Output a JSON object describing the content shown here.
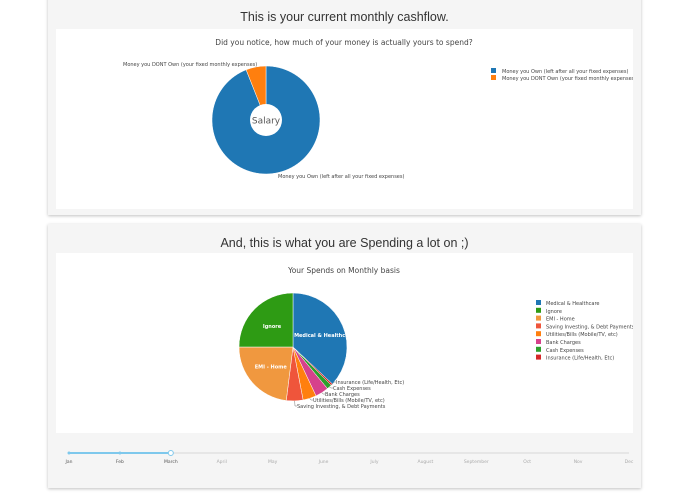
{
  "cashflow": {
    "heading": "This is your current monthly cashflow.",
    "chart_data": {
      "type": "pie",
      "hole": true,
      "title": "Did you notice, how much of your money is actually yours to spend?",
      "center_label": "Salary",
      "labels": [
        "Money you Own (left after all your fixed expenses)",
        "Money you DONT Own (your fixed monthly expenses)"
      ],
      "values": [
        94,
        6
      ],
      "colors": [
        "#1f77b4",
        "#ff7f0e"
      ],
      "legend": "right"
    }
  },
  "spending": {
    "heading": "And, this is what you are Spending a lot on ;)",
    "chart_data": {
      "type": "pie",
      "title": "Your Spends on Monthly basis",
      "labels": [
        "Medical & Healthcare",
        "Insurance (Life/Health, Etc)",
        "Cash Expenses",
        "Bank Charges",
        "Utilities/Bills (Mobile/TV, etc)",
        "Saving Investing, & Debt Payments",
        "EMI - Home",
        "Ignore"
      ],
      "values": [
        37,
        0.5,
        1.5,
        4,
        4,
        5,
        23,
        25
      ],
      "colors": [
        "#1f77b4",
        "#d62728",
        "#2ca02c",
        "#d6418c",
        "#ff7f0e",
        "#ef553b",
        "#f0983f",
        "#2e9b14"
      ],
      "inside_labels": [
        "Medical & Healthcare",
        "EMI - Home",
        "Ignore"
      ],
      "legend_order": [
        "Medical & Healthcare",
        "Ignore",
        "EMI - Home",
        "Saving Investing, & Debt Payments",
        "Utilities/Bills (Mobile/TV, etc)",
        "Bank Charges",
        "Cash Expenses",
        "Insurance (Life/Health, Etc)"
      ],
      "legend": "right"
    }
  },
  "slider": {
    "months": [
      "Jan",
      "Feb",
      "March",
      "April",
      "May",
      "June",
      "July",
      "August",
      "September",
      "Oct",
      "Nov",
      "Dec"
    ],
    "selected": "March",
    "color": "#7ec8ec"
  }
}
